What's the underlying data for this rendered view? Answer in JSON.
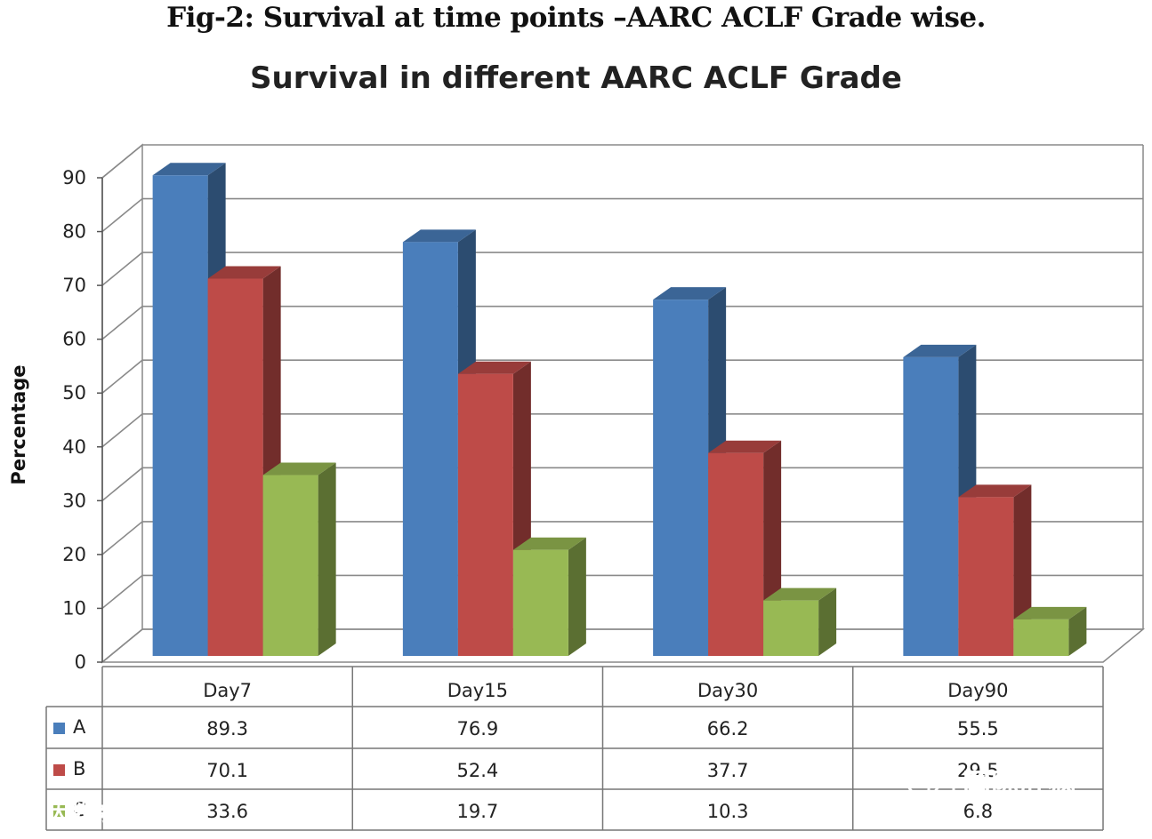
{
  "caption": "Fig-2: Survival at time points –AARC ACLF Grade wise.",
  "chart_data": {
    "type": "bar",
    "title": "Survival in different AARC ACLF Grade",
    "xlabel": "",
    "ylabel": "Percentage",
    "ylim": [
      0,
      90
    ],
    "yticks": [
      0,
      10,
      20,
      30,
      40,
      50,
      60,
      70,
      80,
      90
    ],
    "grid": true,
    "style": "3d-clustered-bar with data table",
    "categories": [
      "Day7",
      "Day15",
      "Day30",
      "Day90"
    ],
    "series": [
      {
        "name": "A",
        "values": [
          89.3,
          76.9,
          66.2,
          55.5
        ],
        "color": "#4a7ebb",
        "labels": [
          "89.3",
          "76.9",
          "66.2",
          "55.5"
        ]
      },
      {
        "name": "B",
        "values": [
          70.1,
          52.4,
          37.7,
          29.5
        ],
        "color": "#be4b48",
        "labels": [
          "70.1",
          "52.4",
          "37.7",
          "29.5"
        ]
      },
      {
        "name": "C",
        "values": [
          33.6,
          19.7,
          10.3,
          6.8
        ],
        "color": "#98b954",
        "labels": [
          "33.6",
          "19.7",
          "10.3",
          "6.8"
        ]
      }
    ]
  },
  "watermarks": {
    "left": "大数跨境",
    "right": "国际肝病"
  }
}
